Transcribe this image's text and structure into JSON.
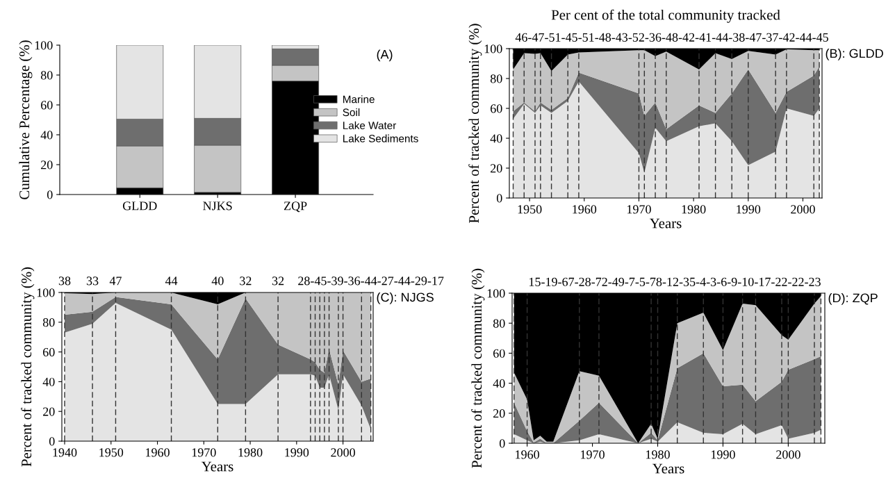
{
  "chart_data": [
    {
      "type": "bar",
      "ylabel": "Cumulative Percentage (%)",
      "categories": [
        "GLDD",
        "NJKS",
        "ZQP"
      ],
      "stacked": true,
      "ylim": [
        0,
        100
      ],
      "yticks": [
        0,
        20,
        40,
        60,
        80,
        100
      ],
      "legend": "right",
      "annotations": [
        "(A)"
      ],
      "series": [
        {
          "name": "Marine",
          "color": "#000000",
          "values": [
            4.5,
            1.5,
            76
          ]
        },
        {
          "name": "Soil",
          "color": "#c4c4c4",
          "values": [
            28,
            31.5,
            10.5
          ]
        },
        {
          "name": "Lake Water",
          "color": "#6e6e6e",
          "values": [
            18,
            18,
            11
          ]
        },
        {
          "name": "Lake Sediments",
          "color": "#e4e4e4",
          "values": [
            49.5,
            49,
            2.5
          ]
        }
      ]
    },
    {
      "type": "area",
      "title": "Per cent of the total community tracked",
      "xlabel": "Years",
      "ylabel": "Percent of tracked community (%)",
      "stacked": true,
      "x": [
        1947,
        1949,
        1951,
        1952,
        1954,
        1957,
        1959,
        1970,
        1971,
        1973,
        1975,
        1981,
        1984,
        1987,
        1990,
        1995,
        1997,
        2002,
        2003
      ],
      "xlim": [
        1946.3,
        2003.5
      ],
      "xticks": [
        1950,
        1960,
        1970,
        1980,
        1990,
        2000
      ],
      "ylim": [
        0,
        100
      ],
      "yticks": [
        0,
        20,
        40,
        60,
        80,
        100
      ],
      "annotations": [
        "(B): GLDD",
        "46-47-51-45-51-48-43-52-36-48-42-41-44-38-47-37-42-44-45"
      ],
      "series": [
        {
          "color": "#e4e4e4",
          "values": [
            53,
            63,
            57,
            62,
            57,
            65,
            78,
            30,
            17,
            47,
            38,
            48,
            50,
            38,
            22,
            31,
            60,
            55,
            60
          ]
        },
        {
          "color": "#6e6e6e",
          "values": [
            5,
            1,
            1,
            2,
            2,
            2,
            6,
            40,
            38,
            17,
            8,
            14,
            7,
            32,
            64,
            26,
            11,
            27,
            28
          ]
        },
        {
          "color": "#c4c4c4",
          "values": [
            28,
            33,
            38.5,
            33,
            26,
            29,
            13.5,
            29,
            44,
            31,
            52,
            24,
            40,
            23,
            12.5,
            39,
            28.5,
            17,
            11
          ]
        },
        {
          "color": "#000000",
          "values": [
            14,
            3,
            3.5,
            3,
            15,
            4,
            2.5,
            1,
            1,
            5,
            2,
            14,
            3,
            7,
            1.5,
            4,
            0.5,
            1,
            1
          ]
        }
      ],
      "ref_lines": [
        {
          "axis": "x",
          "value": 1947,
          "color": "#333333",
          "line_style": "dashed"
        },
        {
          "axis": "x",
          "value": 1949,
          "color": "#333333",
          "line_style": "dashed"
        },
        {
          "axis": "x",
          "value": 1951,
          "color": "#333333",
          "line_style": "dashed"
        },
        {
          "axis": "x",
          "value": 1952,
          "color": "#333333",
          "line_style": "dashed"
        },
        {
          "axis": "x",
          "value": 1954,
          "color": "#333333",
          "line_style": "dashed"
        },
        {
          "axis": "x",
          "value": 1957,
          "color": "#333333",
          "line_style": "dashed"
        },
        {
          "axis": "x",
          "value": 1959,
          "color": "#333333",
          "line_style": "dashed"
        },
        {
          "axis": "x",
          "value": 1970,
          "color": "#333333",
          "line_style": "dashed"
        },
        {
          "axis": "x",
          "value": 1971,
          "color": "#333333",
          "line_style": "dashed"
        },
        {
          "axis": "x",
          "value": 1973,
          "color": "#333333",
          "line_style": "dashed"
        },
        {
          "axis": "x",
          "value": 1975,
          "color": "#333333",
          "line_style": "dashed"
        },
        {
          "axis": "x",
          "value": 1981,
          "color": "#333333",
          "line_style": "dashed"
        },
        {
          "axis": "x",
          "value": 1984,
          "color": "#333333",
          "line_style": "dashed"
        },
        {
          "axis": "x",
          "value": 1987,
          "color": "#333333",
          "line_style": "dashed"
        },
        {
          "axis": "x",
          "value": 1990,
          "color": "#333333",
          "line_style": "dashed"
        },
        {
          "axis": "x",
          "value": 1995,
          "color": "#333333",
          "line_style": "dashed"
        },
        {
          "axis": "x",
          "value": 1997,
          "color": "#333333",
          "line_style": "dashed"
        },
        {
          "axis": "x",
          "value": 2002,
          "color": "#333333",
          "line_style": "dashed"
        },
        {
          "axis": "x",
          "value": 2003,
          "color": "#333333",
          "line_style": "dashed"
        }
      ]
    },
    {
      "type": "area",
      "xlabel": "Years",
      "ylabel": "Percent of tracked community (%)",
      "stacked": true,
      "x": [
        1940,
        1946,
        1951,
        1963,
        1973,
        1979,
        1986,
        1993,
        1994,
        1995,
        1996,
        1997,
        1999,
        2000,
        2004,
        2006
      ],
      "xlim": [
        1939.4,
        2006.5
      ],
      "xticks": [
        1940,
        1950,
        1960,
        1970,
        1980,
        1990,
        2000
      ],
      "ylim": [
        0,
        100
      ],
      "yticks": [
        0,
        20,
        40,
        60,
        80,
        100
      ],
      "annotations": [
        "(C): NJGS",
        {
          "text": "38",
          "x": 1940,
          "y": 100
        },
        {
          "text": "33",
          "x": 1946,
          "y": 100
        },
        {
          "text": "47",
          "x": 1951,
          "y": 100
        },
        {
          "text": "44",
          "x": 1963,
          "y": 100
        },
        {
          "text": "40",
          "x": 1973,
          "y": 100
        },
        {
          "text": "32",
          "x": 1979,
          "y": 100
        },
        {
          "text": "32",
          "x": 1986,
          "y": 100
        },
        {
          "text": "28-45-39-36-44-27-44-29-17",
          "x": 2006,
          "y": 100
        }
      ],
      "series": [
        {
          "color": "#e4e4e4",
          "values": [
            73,
            79,
            93,
            75,
            25,
            25,
            45,
            45,
            44,
            36,
            36,
            45,
            21,
            45,
            24,
            8
          ]
        },
        {
          "color": "#6e6e6e",
          "values": [
            12,
            8,
            4,
            17,
            30,
            71,
            20,
            10,
            9,
            12,
            10,
            17,
            17,
            16,
            16,
            34
          ]
        },
        {
          "color": "#c4c4c4",
          "values": [
            14.5,
            12,
            3,
            8,
            37,
            4,
            35,
            45,
            47,
            52,
            54,
            38,
            62,
            39,
            60,
            58
          ]
        },
        {
          "color": "#000000",
          "values": [
            0.5,
            1,
            0,
            0,
            8,
            0,
            0,
            0,
            0,
            0,
            0,
            0,
            0,
            0,
            0,
            0
          ]
        }
      ],
      "ref_lines": [
        {
          "axis": "x",
          "value": 1940,
          "color": "#333333",
          "line_style": "dashed"
        },
        {
          "axis": "x",
          "value": 1946,
          "color": "#333333",
          "line_style": "dashed"
        },
        {
          "axis": "x",
          "value": 1951,
          "color": "#333333",
          "line_style": "dashed"
        },
        {
          "axis": "x",
          "value": 1963,
          "color": "#333333",
          "line_style": "dashed"
        },
        {
          "axis": "x",
          "value": 1973,
          "color": "#333333",
          "line_style": "dashed"
        },
        {
          "axis": "x",
          "value": 1979,
          "color": "#333333",
          "line_style": "dashed"
        },
        {
          "axis": "x",
          "value": 1986,
          "color": "#333333",
          "line_style": "dashed"
        },
        {
          "axis": "x",
          "value": 1993,
          "color": "#333333",
          "line_style": "dashed"
        },
        {
          "axis": "x",
          "value": 1994,
          "color": "#333333",
          "line_style": "dashed"
        },
        {
          "axis": "x",
          "value": 1995,
          "color": "#333333",
          "line_style": "dashed"
        },
        {
          "axis": "x",
          "value": 1996,
          "color": "#333333",
          "line_style": "dashed"
        },
        {
          "axis": "x",
          "value": 1997,
          "color": "#333333",
          "line_style": "dashed"
        },
        {
          "axis": "x",
          "value": 1999,
          "color": "#333333",
          "line_style": "dashed"
        },
        {
          "axis": "x",
          "value": 2000,
          "color": "#333333",
          "line_style": "dashed"
        },
        {
          "axis": "x",
          "value": 2004,
          "color": "#333333",
          "line_style": "dashed"
        },
        {
          "axis": "x",
          "value": 2006,
          "color": "#333333",
          "line_style": "dashed"
        }
      ]
    },
    {
      "type": "area",
      "xlabel": "Years",
      "ylabel": "Percent of tracked community (%)",
      "stacked": true,
      "x": [
        1958,
        1960,
        1961,
        1962,
        1963,
        1964,
        1968,
        1971,
        1977,
        1979,
        1980,
        1983,
        1987,
        1990,
        1993,
        1995,
        1999,
        2000,
        2004,
        2005
      ],
      "xlim": [
        1957.7,
        2005.6
      ],
      "xticks": [
        1960,
        1970,
        1980,
        1990,
        2000
      ],
      "ylim": [
        0,
        100
      ],
      "yticks": [
        0,
        20,
        40,
        60,
        80,
        100
      ],
      "annotations": [
        "(D): ZQP",
        "15-19-67-28-72-49-7-5-78-12-35-4-3-6-9-10-17-22-22-23"
      ],
      "series": [
        {
          "color": "#e4e4e4",
          "values": [
            6,
            2,
            0,
            1,
            0,
            0,
            2,
            6,
            0,
            3,
            1,
            14,
            7,
            6,
            13,
            6,
            12,
            3,
            7,
            9
          ]
        },
        {
          "color": "#6e6e6e",
          "values": [
            21,
            6,
            0.5,
            2,
            0,
            0,
            13,
            21,
            0,
            4,
            1,
            36,
            53,
            32,
            26,
            22,
            29,
            46,
            49,
            49
          ]
        },
        {
          "color": "#c4c4c4",
          "values": [
            20,
            21,
            1.5,
            2,
            1,
            1,
            33,
            18,
            0,
            6,
            1,
            30,
            27,
            24,
            54,
            64,
            31,
            20,
            37,
            40
          ]
        },
        {
          "color": "#000000",
          "values": [
            53,
            71,
            98,
            95,
            99,
            99,
            52,
            55,
            100,
            87,
            97,
            20,
            13,
            38,
            7,
            8,
            28,
            31,
            7,
            2
          ]
        }
      ],
      "ref_lines": [
        {
          "axis": "x",
          "value": 1958,
          "color": "#333333",
          "line_style": "dashed"
        },
        {
          "axis": "x",
          "value": 1960,
          "color": "#333333",
          "line_style": "dashed"
        },
        {
          "axis": "x",
          "value": 1968,
          "color": "#333333",
          "line_style": "dashed"
        },
        {
          "axis": "x",
          "value": 1971,
          "color": "#333333",
          "line_style": "dashed"
        },
        {
          "axis": "x",
          "value": 1979,
          "color": "#333333",
          "line_style": "dashed"
        },
        {
          "axis": "x",
          "value": 1980,
          "color": "#333333",
          "line_style": "dashed"
        },
        {
          "axis": "x",
          "value": 1983,
          "color": "#333333",
          "line_style": "dashed"
        },
        {
          "axis": "x",
          "value": 1987,
          "color": "#333333",
          "line_style": "dashed"
        },
        {
          "axis": "x",
          "value": 1990,
          "color": "#333333",
          "line_style": "dashed"
        },
        {
          "axis": "x",
          "value": 1993,
          "color": "#333333",
          "line_style": "dashed"
        },
        {
          "axis": "x",
          "value": 1995,
          "color": "#333333",
          "line_style": "dashed"
        },
        {
          "axis": "x",
          "value": 1999,
          "color": "#333333",
          "line_style": "dashed"
        },
        {
          "axis": "x",
          "value": 2000,
          "color": "#333333",
          "line_style": "dashed"
        },
        {
          "axis": "x",
          "value": 2004,
          "color": "#333333",
          "line_style": "dashed"
        },
        {
          "axis": "x",
          "value": 2005,
          "color": "#333333",
          "line_style": "dashed"
        }
      ]
    }
  ]
}
